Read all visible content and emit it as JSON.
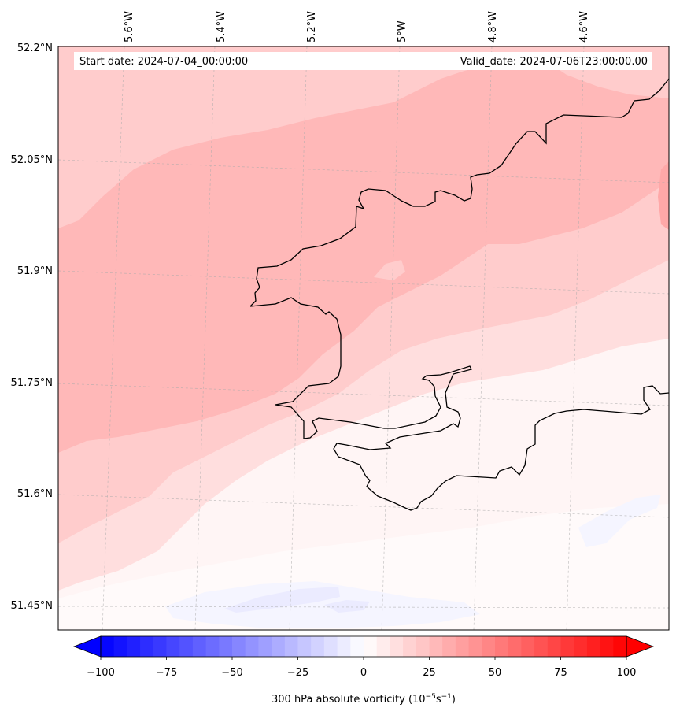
{
  "header": {
    "start_date": "Start date: 2024-07-04_00:00:00",
    "valid_date": "Valid_date: 2024-07-06T23:00:00.00"
  },
  "map": {
    "lon_labels": [
      "5.6°W",
      "5.4°W",
      "5.2°W",
      "5°W",
      "4.8°W",
      "4.6°W"
    ],
    "lat_labels": [
      "52.2°N",
      "52.05°N",
      "51.9°N",
      "51.75°N",
      "51.6°N",
      "51.45°N"
    ],
    "field": "300 hPa absolute vorticity"
  },
  "colorbar": {
    "title_main": "300 hPa absolute vorticity (10",
    "title_exp1": "−5",
    "title_mid": "s",
    "title_exp2": "−1",
    "title_end": ")",
    "ticks": [
      "−100",
      "−75",
      "−50",
      "−25",
      "0",
      "25",
      "50",
      "75",
      "100"
    ],
    "tick_values": [
      -100,
      -75,
      -50,
      -25,
      0,
      25,
      50,
      75,
      100
    ],
    "min": -100,
    "max": 100,
    "levels": 40,
    "low_color": "#0000ff",
    "high_color": "#ff0000"
  }
}
